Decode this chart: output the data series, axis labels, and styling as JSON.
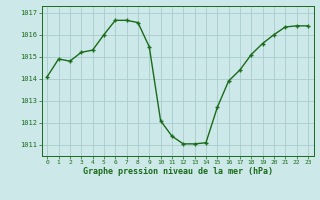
{
  "x": [
    0,
    1,
    2,
    3,
    4,
    5,
    6,
    7,
    8,
    9,
    10,
    11,
    12,
    13,
    14,
    15,
    16,
    17,
    18,
    19,
    20,
    21,
    22,
    23
  ],
  "y": [
    1014.1,
    1014.9,
    1014.8,
    1015.2,
    1015.3,
    1016.0,
    1016.65,
    1016.65,
    1016.55,
    1015.45,
    1012.1,
    1011.4,
    1011.05,
    1011.05,
    1011.1,
    1012.7,
    1013.9,
    1014.4,
    1015.1,
    1015.6,
    1016.0,
    1016.35,
    1016.4,
    1016.4
  ],
  "line_color": "#1a6b1a",
  "marker": "+",
  "bg_color": "#cce8e8",
  "grid_color": "#aacccc",
  "xlabel": "Graphe pression niveau de la mer (hPa)",
  "xlabel_color": "#1a6b1a",
  "tick_color": "#1a6b1a",
  "spine_color": "#1a6b1a",
  "ylim": [
    1010.5,
    1017.3
  ],
  "yticks": [
    1011,
    1012,
    1013,
    1014,
    1015,
    1016,
    1017
  ],
  "xlim": [
    -0.5,
    23.5
  ],
  "xticks": [
    0,
    1,
    2,
    3,
    4,
    5,
    6,
    7,
    8,
    9,
    10,
    11,
    12,
    13,
    14,
    15,
    16,
    17,
    18,
    19,
    20,
    21,
    22,
    23
  ],
  "marker_size": 3.5,
  "line_width": 1.0
}
